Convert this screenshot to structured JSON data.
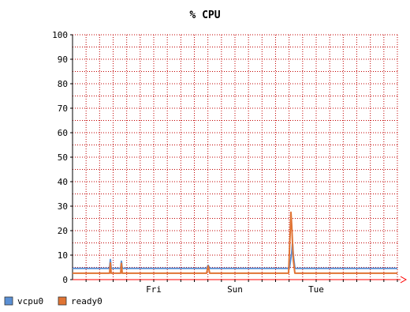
{
  "chart_data": {
    "type": "line",
    "title": "% CPU",
    "xlabel": "",
    "ylabel": "",
    "ylim": [
      0,
      100
    ],
    "yticks": [
      0,
      10,
      20,
      30,
      40,
      50,
      60,
      70,
      80,
      90,
      100
    ],
    "xlim": [
      0,
      412
    ],
    "x_tick_labels": [
      {
        "label": "Fri",
        "x": 103
      },
      {
        "label": "Sun",
        "x": 206
      },
      {
        "label": "Tue",
        "x": 309
      }
    ],
    "grid": true,
    "legend_position": "bottom-left",
    "series": [
      {
        "name": "vcpu0",
        "color": "#5a8fd4",
        "points": [
          [
            0,
            4.6
          ],
          [
            47,
            4.6
          ],
          [
            48,
            8.2
          ],
          [
            49,
            4.6
          ],
          [
            61,
            4.6
          ],
          [
            62,
            7.5
          ],
          [
            63,
            4.6
          ],
          [
            170,
            4.6
          ],
          [
            172,
            5.8
          ],
          [
            174,
            4.6
          ],
          [
            275,
            4.6
          ],
          [
            278,
            11
          ],
          [
            279,
            15
          ],
          [
            280,
            10
          ],
          [
            282,
            4.6
          ],
          [
            412,
            4.6
          ]
        ]
      },
      {
        "name": "ready0",
        "color": "#e07434",
        "points": [
          [
            0,
            2.6
          ],
          [
            47,
            2.6
          ],
          [
            48,
            6.8
          ],
          [
            49,
            2.6
          ],
          [
            61,
            2.6
          ],
          [
            62,
            6.6
          ],
          [
            63,
            2.6
          ],
          [
            170,
            2.6
          ],
          [
            172,
            5.6
          ],
          [
            174,
            2.6
          ],
          [
            274,
            2.6
          ],
          [
            277,
            27.5
          ],
          [
            278,
            22
          ],
          [
            280,
            8
          ],
          [
            282,
            2.6
          ],
          [
            412,
            2.6
          ]
        ]
      }
    ]
  },
  "colors": {
    "grid": "#c00000",
    "axis": "#000000",
    "arrow": "#ff0000"
  }
}
